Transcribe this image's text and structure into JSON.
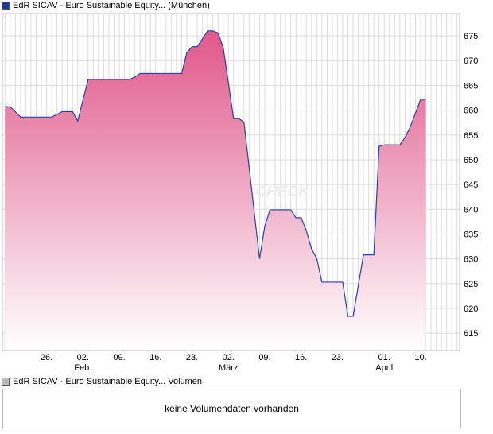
{
  "price_legend": {
    "label": "EdR SICAV - Euro Sustainable Equity... (München)",
    "color": "#1f3a93"
  },
  "volume_legend": {
    "label": "EdR SICAV - Euro Sustainable Equity... Volumen",
    "color": "#bbbbbb"
  },
  "volume_panel": {
    "message": "keine Volumendaten vorhanden"
  },
  "watermark": "CHECK",
  "colors": {
    "line": "#2a3fb0",
    "fill_top": "#e0588a",
    "fill_bottom": "#ffffff",
    "grid": "#dcdcdc",
    "axis": "#b8b8b8"
  },
  "chart_data": {
    "type": "area",
    "title": "",
    "xlabel": "",
    "ylabel": "",
    "ylim": [
      611.5,
      679.5
    ],
    "y_ticks": [
      615,
      620,
      625,
      630,
      635,
      640,
      645,
      650,
      655,
      660,
      665,
      670,
      675
    ],
    "x_ticks": [
      {
        "index": 8,
        "label": "26.",
        "sublabel": ""
      },
      {
        "index": 15,
        "label": "02.",
        "sublabel": "Feb."
      },
      {
        "index": 22,
        "label": "09.",
        "sublabel": ""
      },
      {
        "index": 29,
        "label": "16.",
        "sublabel": ""
      },
      {
        "index": 36,
        "label": "23.",
        "sublabel": ""
      },
      {
        "index": 43,
        "label": "02.",
        "sublabel": "März"
      },
      {
        "index": 50,
        "label": "09.",
        "sublabel": ""
      },
      {
        "index": 57,
        "label": "16.",
        "sublabel": ""
      },
      {
        "index": 64,
        "label": "23.",
        "sublabel": ""
      },
      {
        "index": 73,
        "label": "01.",
        "sublabel": "April"
      },
      {
        "index": 80,
        "label": "10.",
        "sublabel": ""
      }
    ],
    "n_points": 88,
    "grid": true,
    "legend": "top-left",
    "series": [
      {
        "name": "EdR SICAV - Euro Sustainable Equity... (München)",
        "points": [
          [
            0,
            660.7
          ],
          [
            1,
            660.7
          ],
          [
            3,
            658.6
          ],
          [
            4,
            658.6
          ],
          [
            8,
            658.6
          ],
          [
            9,
            658.6
          ],
          [
            11,
            659.7
          ],
          [
            13,
            659.7
          ],
          [
            14,
            657.8
          ],
          [
            16,
            666.2
          ],
          [
            23,
            666.2
          ],
          [
            24,
            666.2
          ],
          [
            25,
            666.7
          ],
          [
            26,
            667.4
          ],
          [
            33,
            667.4
          ],
          [
            34,
            667.4
          ],
          [
            35,
            671.6
          ],
          [
            36,
            672.8
          ],
          [
            37,
            672.8
          ],
          [
            39,
            676.0
          ],
          [
            40,
            676.0
          ],
          [
            41,
            675.6
          ],
          [
            42,
            672.7
          ],
          [
            44,
            658.3
          ],
          [
            45,
            658.3
          ],
          [
            46,
            657.6
          ],
          [
            49,
            630.0
          ],
          [
            50,
            636.6
          ],
          [
            51,
            639.9
          ],
          [
            55,
            639.9
          ],
          [
            56,
            638.3
          ],
          [
            57,
            638.3
          ],
          [
            58,
            635.7
          ],
          [
            59,
            632.0
          ],
          [
            60,
            630.1
          ],
          [
            61,
            625.3
          ],
          [
            65,
            625.3
          ],
          [
            66,
            618.4
          ],
          [
            67,
            618.4
          ],
          [
            69,
            630.8
          ],
          [
            71,
            630.8
          ],
          [
            72,
            652.7
          ],
          [
            73,
            653.0
          ],
          [
            76,
            653.0
          ],
          [
            77,
            654.5
          ],
          [
            78,
            656.6
          ],
          [
            80,
            662.2
          ],
          [
            81,
            662.2
          ]
        ]
      }
    ]
  }
}
